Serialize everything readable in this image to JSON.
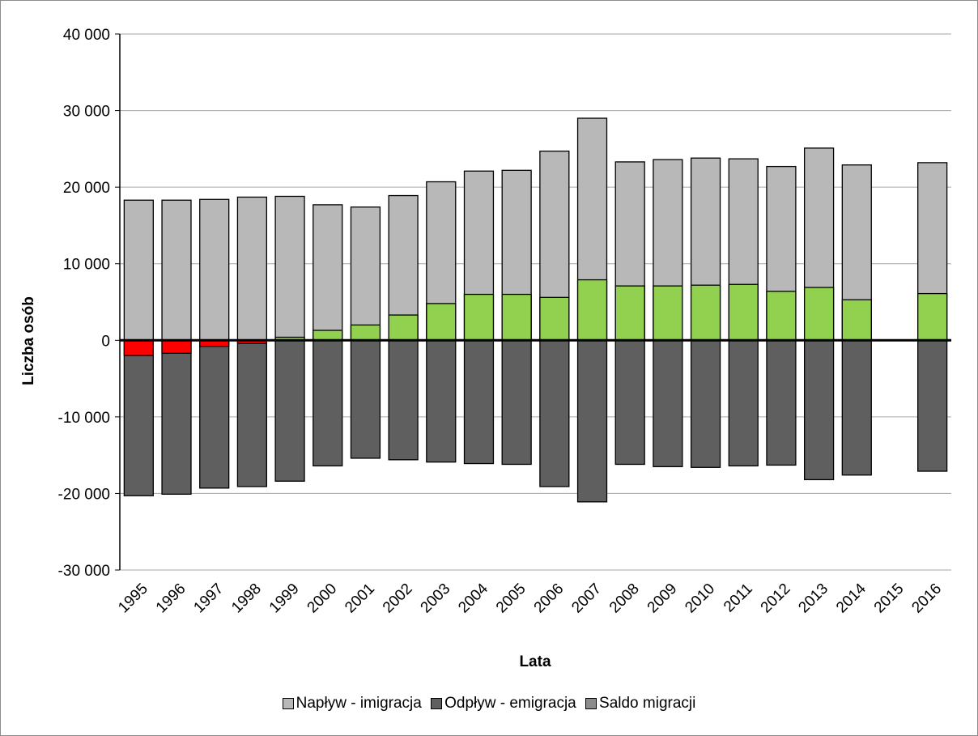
{
  "chart_data": {
    "type": "bar",
    "stacked": true,
    "xlabel": "Lata",
    "ylabel": "Liczba osób",
    "ylim": [
      -30000,
      40000
    ],
    "yticks": [
      -30000,
      -20000,
      -10000,
      0,
      10000,
      20000,
      30000,
      40000
    ],
    "ytick_labels": [
      "-30 000",
      "-20 000",
      "-10 000",
      "0",
      "10 000",
      "20 000",
      "30 000",
      "40 000"
    ],
    "grid": true,
    "legend_position": "bottom",
    "categories": [
      "1995",
      "1996",
      "1997",
      "1998",
      "1999",
      "2000",
      "2001",
      "2002",
      "2003",
      "2004",
      "2005",
      "2006",
      "2007",
      "2008",
      "2009",
      "2010",
      "2011",
      "2012",
      "2013",
      "2014",
      "2015",
      "2016"
    ],
    "series": [
      {
        "name": "Napływ - imigracja",
        "color": "#b8b8b8",
        "values": [
          18300,
          18300,
          18400,
          18700,
          18800,
          17700,
          17400,
          18900,
          20700,
          22100,
          22200,
          24700,
          29000,
          23300,
          23600,
          23800,
          23700,
          22700,
          25100,
          22900,
          null,
          23200
        ]
      },
      {
        "name": "Odpływ - emigracja",
        "color": "#5f5f5f",
        "values": [
          -20300,
          -20100,
          -19300,
          -19100,
          -18400,
          -16400,
          -15400,
          -15600,
          -15900,
          -16100,
          -16200,
          -19100,
          -21100,
          -16200,
          -16500,
          -16600,
          -16400,
          -16300,
          -18200,
          -17600,
          null,
          -17100
        ]
      },
      {
        "name": "Saldo migracji",
        "color": "#8c8c8c",
        "positive_color": "#92d050",
        "negative_color": "#ff0000",
        "values": [
          -2000,
          -1700,
          -800,
          -400,
          400,
          1300,
          2000,
          3300,
          4800,
          6000,
          6000,
          5600,
          7900,
          7100,
          7100,
          7200,
          7300,
          6400,
          6900,
          5300,
          null,
          6100
        ]
      }
    ]
  }
}
